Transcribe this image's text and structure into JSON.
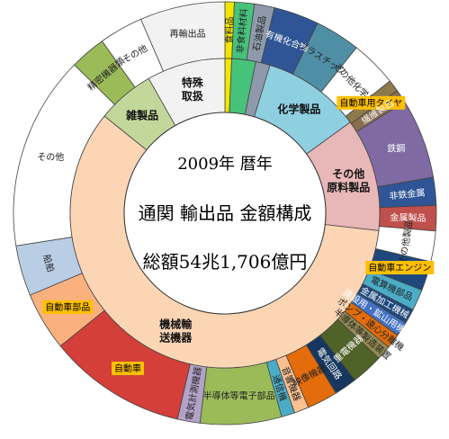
{
  "chart_data": {
    "type": "pie",
    "style": "double-donut",
    "title": {
      "line1": "2009年 暦年",
      "line2": "通関 輸出品 金額構成",
      "line3": "総額54兆1,706億円"
    },
    "inner_ring": [
      {
        "key": "food",
        "label": "",
        "value": 0.7,
        "color": "#f2e600"
      },
      {
        "key": "raw",
        "label": "",
        "value": 2.5,
        "color": "#47c27a"
      },
      {
        "key": "fuel",
        "label": "",
        "value": 1.5,
        "color": "#8e9aab"
      },
      {
        "key": "chem",
        "label": "化学製品",
        "value": 10.3,
        "color": "#8ecfe0"
      },
      {
        "key": "mat",
        "label": "その他\n原料製品",
        "value": 11.8,
        "color": "#e8b7b7"
      },
      {
        "key": "mach",
        "label": "機械輸\n送機器",
        "value": 59.0,
        "color": "#fcd5b5"
      },
      {
        "key": "misc",
        "label": "雑製品",
        "value": 6.0,
        "color": "#c4d79b"
      },
      {
        "key": "special",
        "label": "特殊\n取扱",
        "value": 8.2,
        "color": "#f2f2f2"
      }
    ],
    "outer_ring": [
      {
        "label": "食料品",
        "value": 0.7,
        "color": "#f2e600"
      },
      {
        "label": "非食料材料",
        "value": 1.5,
        "color": "#47c27a"
      },
      {
        "label": "石油製品",
        "value": 1.5,
        "color": "#8e9aab"
      },
      {
        "label": "有機化合物",
        "value": 3.4,
        "color": "#2f5597"
      },
      {
        "label": "プラスチック",
        "value": 3.4,
        "color": "#4f8fa5"
      },
      {
        "label": "その他化学品",
        "value": 3.5,
        "color": "#ffffff"
      },
      {
        "label": "自動車用タイヤ",
        "value": 0.9,
        "color": "#8c7a4b"
      },
      {
        "label": "繊維製品",
        "value": 1.0,
        "color": "#8a6c4f"
      },
      {
        "label": "鉄鋼",
        "value": 6.0,
        "color": "#7f6aa3"
      },
      {
        "label": "非鉄金属",
        "value": 2.1,
        "color": "#2f5597"
      },
      {
        "label": "金属製品",
        "value": 1.9,
        "color": "#c0504d"
      },
      {
        "label": "その他製品",
        "value": 2.3,
        "color": "#ffffff"
      },
      {
        "label": "自動車エンジン",
        "value": 2.2,
        "color": "#1f497d"
      },
      {
        "label": "電算機部品",
        "value": 1.6,
        "color": "#4bacc6"
      },
      {
        "label": "金属加工機械",
        "value": 1.1,
        "color": "#1f497d"
      },
      {
        "label": "建設用・鉱山用機械",
        "value": 1.1,
        "color": "#4472c4"
      },
      {
        "label": "ポンプ・遠心分離機",
        "value": 1.1,
        "color": "#e36c0a"
      },
      {
        "label": "半導体等製造装置",
        "value": 1.1,
        "color": "#948a54"
      },
      {
        "label": "重電機器",
        "value": 2.4,
        "color": "#4f6228"
      },
      {
        "label": "電気回路",
        "value": 1.7,
        "color": "#17375e"
      },
      {
        "label": "映像機器",
        "value": 2.3,
        "color": "#e46c0a"
      },
      {
        "label": "音響機器",
        "value": 1.1,
        "color": "#fac090"
      },
      {
        "label": "通信機",
        "value": 1.0,
        "color": "#4bacc6"
      },
      {
        "label": "半導体等電子部品",
        "value": 6.1,
        "color": "#9bbb59"
      },
      {
        "label": "電気計測機器",
        "value": 1.7,
        "color": "#b2a2c7"
      },
      {
        "label": "自動車",
        "value": 10.4,
        "color": "#d43f3a"
      },
      {
        "label": "自動車部品",
        "value": 4.4,
        "color": "#fab17e"
      },
      {
        "label": "船舶",
        "value": 3.8,
        "color": "#b9cde5"
      },
      {
        "label": "その他",
        "value": 14.6,
        "color": "#ffffff"
      },
      {
        "label": "精密機器類",
        "value": 2.7,
        "color": "#9bbb59"
      },
      {
        "label": "その他",
        "value": 3.3,
        "color": "#ffffff"
      },
      {
        "label": "再輸出品",
        "value": 6.4,
        "color": "#f2f2f2"
      }
    ],
    "callouts": [
      "自動車用タイヤ",
      "自動車エンジン",
      "自動車部品",
      "自動車"
    ]
  }
}
